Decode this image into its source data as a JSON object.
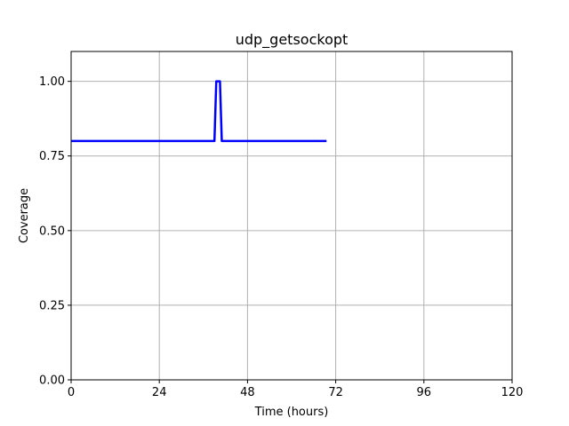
{
  "chart_data": {
    "type": "line",
    "title": "udp_getsockopt",
    "xlabel": "Time (hours)",
    "ylabel": "Coverage",
    "xlim": [
      0,
      120
    ],
    "ylim": [
      0,
      1.1
    ],
    "xticks": [
      0,
      24,
      48,
      72,
      96,
      120
    ],
    "yticks": [
      0.0,
      0.25,
      0.5,
      0.75,
      1.0
    ],
    "xtick_labels": [
      "0",
      "24",
      "48",
      "72",
      "96",
      "120"
    ],
    "ytick_labels": [
      "0.00",
      "0.25",
      "0.50",
      "0.75",
      "1.00"
    ],
    "grid": true,
    "series": [
      {
        "color": "#0000ff",
        "x": [
          0,
          39,
          39.5,
          40.5,
          41,
          69.5
        ],
        "y": [
          0.8,
          0.8,
          1.0,
          1.0,
          0.8,
          0.8
        ]
      }
    ]
  }
}
